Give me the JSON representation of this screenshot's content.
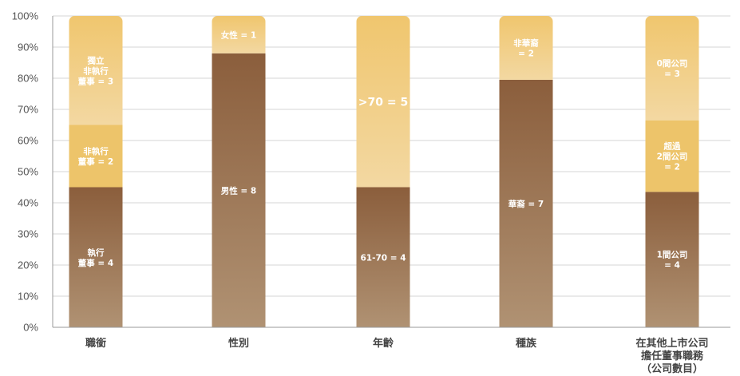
{
  "chart_data": {
    "type": "bar",
    "stacked": true,
    "ylim": [
      0,
      100
    ],
    "yticks": [
      "0%",
      "10%",
      "20%",
      "30%",
      "40%",
      "50%",
      "60%",
      "70%",
      "80%",
      "90%",
      "100%"
    ],
    "grid": true,
    "colors": {
      "dark_top": "#8b5e3c",
      "dark_bottom": "#b09273",
      "mid": "#edc46a",
      "light_top": "#f0c66e",
      "light_bottom": "#f3d8a2",
      "grid": "#d5d5d5",
      "axis": "#9a9a9a"
    },
    "categories": [
      {
        "label": [
          "職銜"
        ],
        "segments": [
          {
            "label": [
              "執行",
              "董事 = 4"
            ],
            "value": 45,
            "fill": "dark"
          },
          {
            "label": [
              "非執行",
              "董事 = 2"
            ],
            "value": 20,
            "fill": "mid"
          },
          {
            "label": [
              "獨立",
              "非執行",
              "董事 = 3"
            ],
            "value": 35,
            "fill": "light"
          }
        ]
      },
      {
        "label": [
          "性別"
        ],
        "segments": [
          {
            "label": [
              "男性 = 8"
            ],
            "value": 88,
            "fill": "dark"
          },
          {
            "label": [
              "女性 = 1"
            ],
            "value": 12,
            "fill": "light"
          }
        ]
      },
      {
        "label": [
          "年齡"
        ],
        "segments": [
          {
            "label": [
              "61-70 = 4"
            ],
            "value": 45,
            "fill": "dark"
          },
          {
            "label": [
              ">70 = 5"
            ],
            "value": 55,
            "fill": "light",
            "large": true
          }
        ]
      },
      {
        "label": [
          "種族"
        ],
        "segments": [
          {
            "label": [
              "華裔 = 7"
            ],
            "value": 79.5,
            "fill": "dark"
          },
          {
            "label": [
              "非華裔",
              "= 2"
            ],
            "value": 20.5,
            "fill": "light"
          }
        ]
      },
      {
        "label": [
          "在其他上市公司",
          "擔任董事職務",
          "（公司數目）"
        ],
        "segments": [
          {
            "label": [
              "1間公司",
              "= 4"
            ],
            "value": 43.5,
            "fill": "dark"
          },
          {
            "label": [
              "超過",
              "2間公司",
              "= 2"
            ],
            "value": 23,
            "fill": "mid"
          },
          {
            "label": [
              "0間公司",
              "= 3"
            ],
            "value": 33.5,
            "fill": "light"
          }
        ]
      }
    ]
  }
}
